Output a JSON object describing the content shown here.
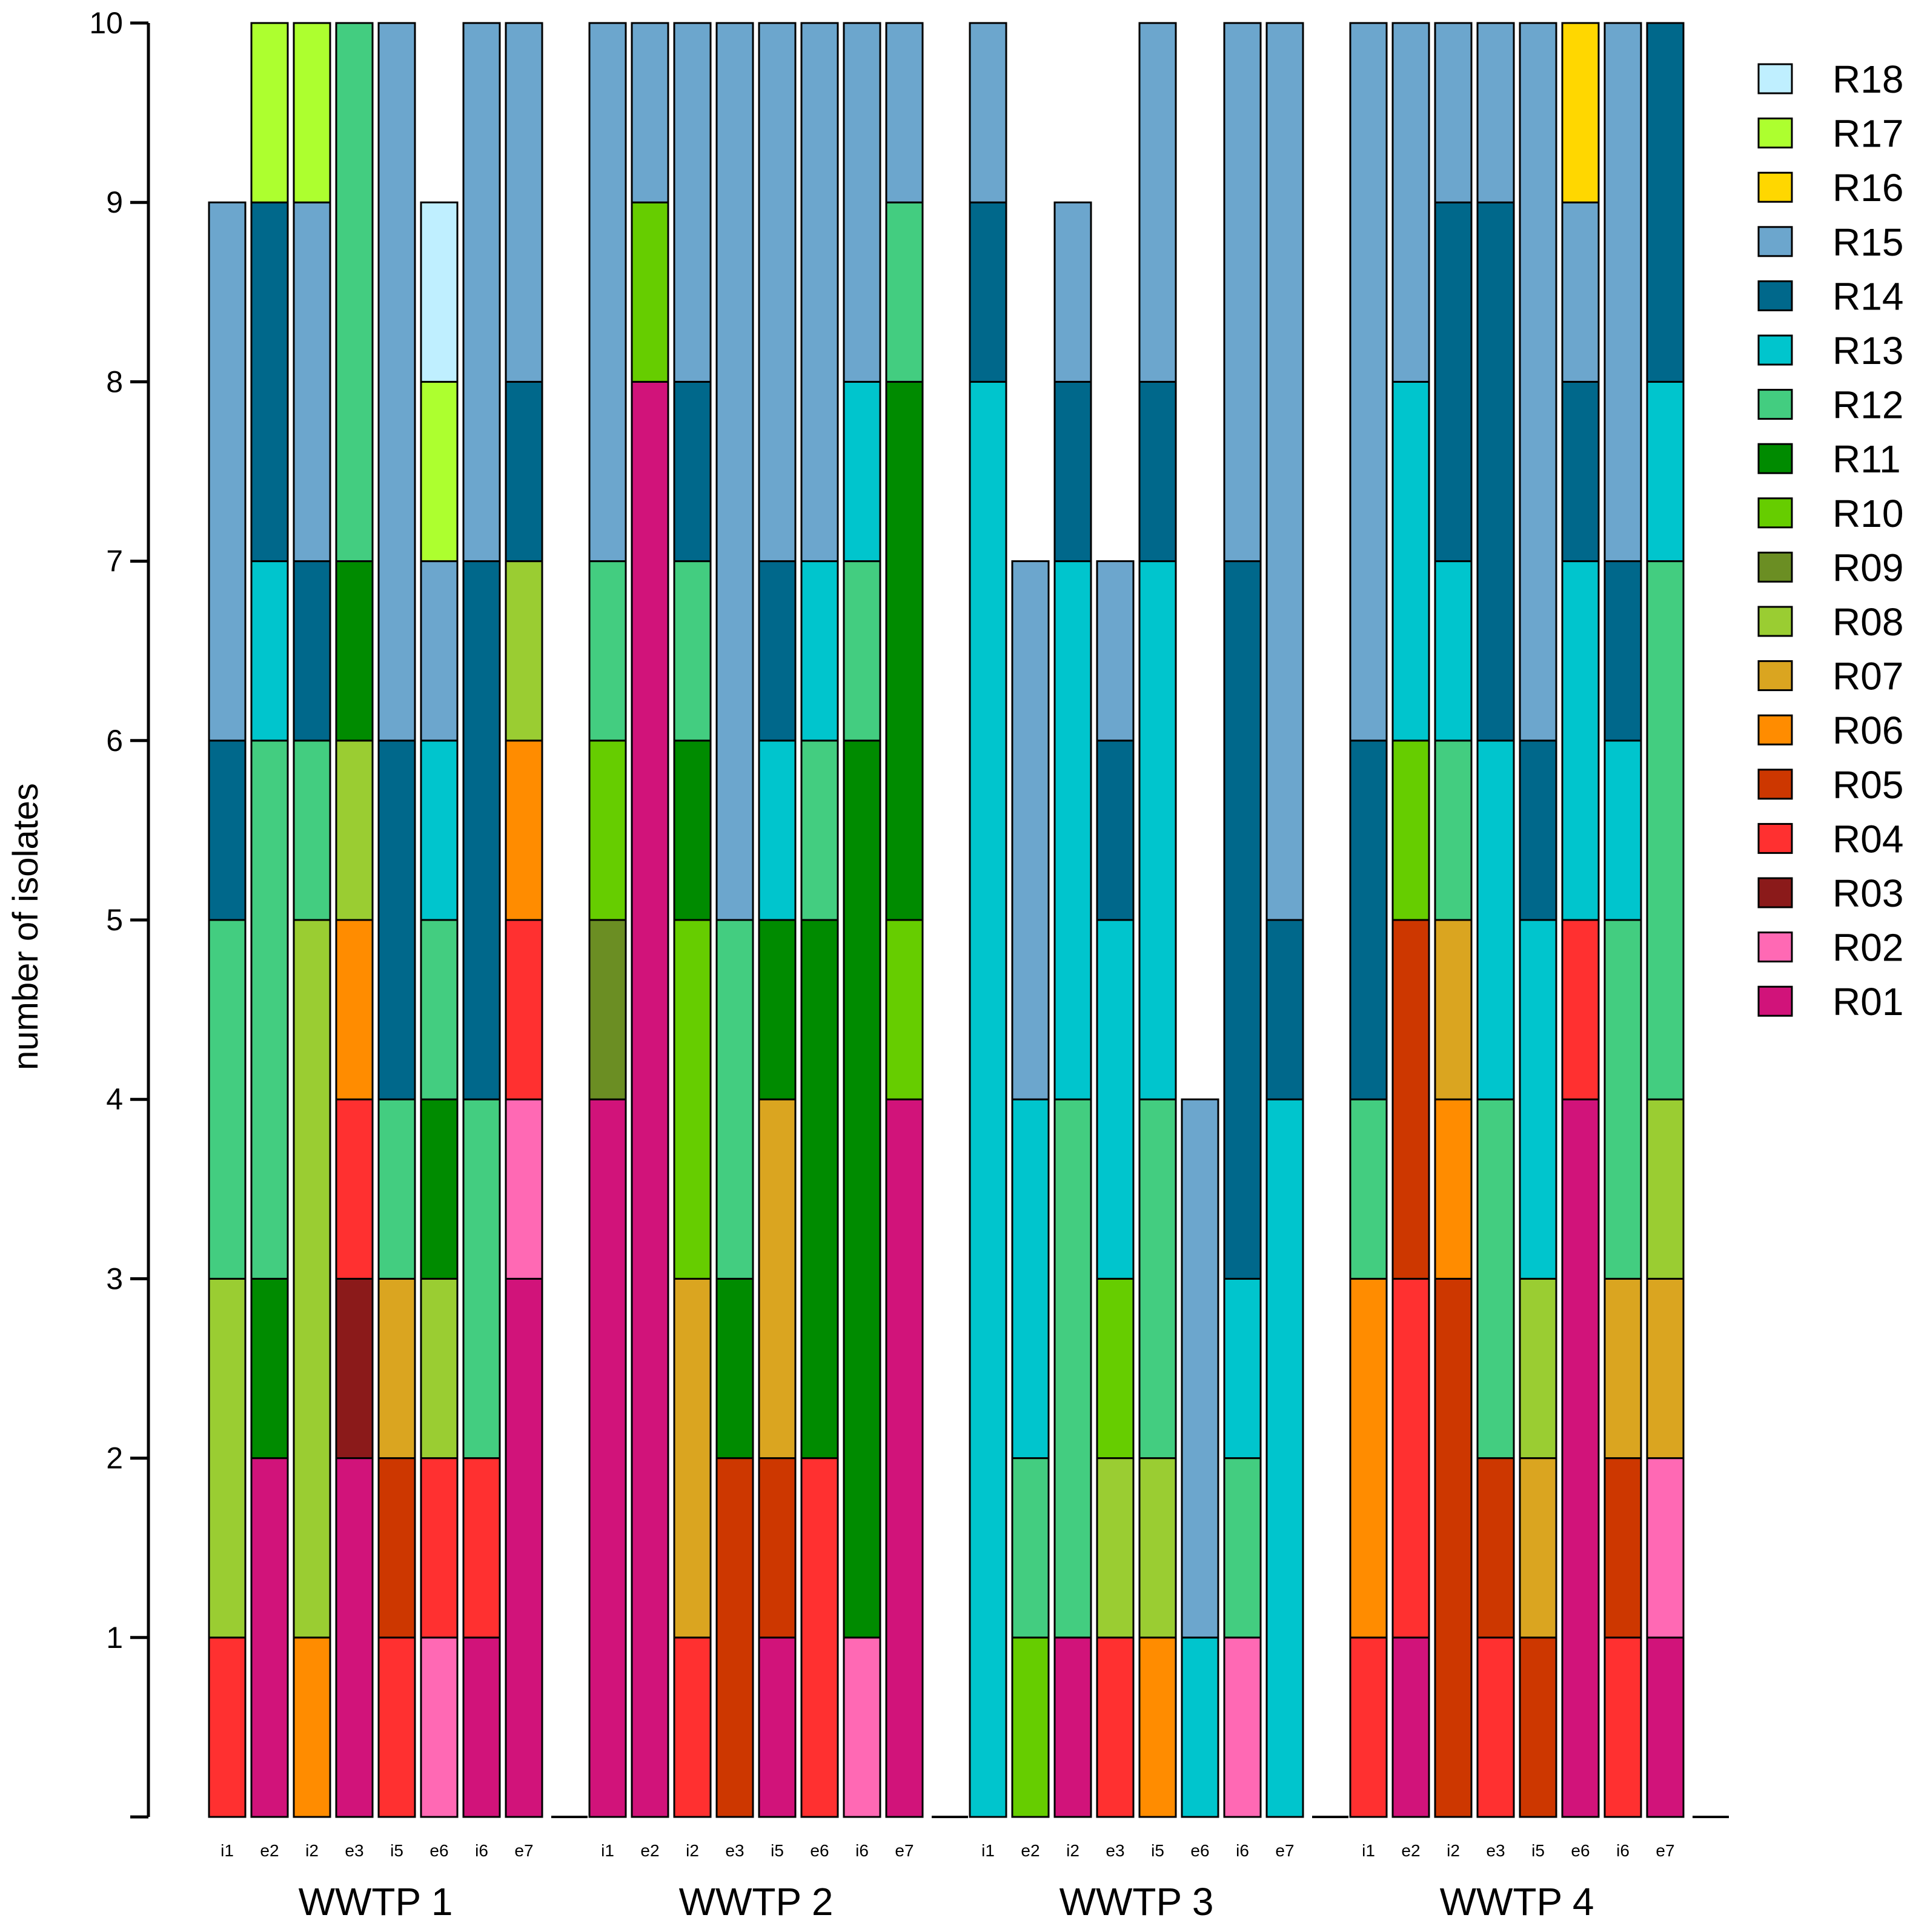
{
  "colors": {
    "R01": "#D1137A",
    "R02": "#FF69B4",
    "R03": "#8B1A1A",
    "R04": "#FF3030",
    "R05": "#CD3700",
    "R06": "#FF8C00",
    "R07": "#DAA520",
    "R08": "#9ACD32",
    "R09": "#6B8E23",
    "R10": "#66CD00",
    "R11": "#008B00",
    "R12": "#43CD80",
    "R13": "#00C5CD",
    "R14": "#00688B",
    "R15": "#6CA6CD",
    "R16": "#FFD700",
    "R17": "#ADFF2F",
    "R18": "#BFEFFF"
  },
  "chart_data": {
    "type": "bar",
    "stacked": true,
    "title": "",
    "xlabel": "",
    "ylabel": "number of isolates",
    "ylim": [
      0,
      10
    ],
    "yticks": [
      "1",
      "2",
      "3",
      "4",
      "5",
      "6",
      "7",
      "8",
      "9",
      "10"
    ],
    "legend_position": "right",
    "legend": [
      "R18",
      "R17",
      "R16",
      "R15",
      "R14",
      "R13",
      "R12",
      "R11",
      "R10",
      "R09",
      "R08",
      "R07",
      "R06",
      "R05",
      "R04",
      "R03",
      "R02",
      "R01"
    ],
    "groups": [
      {
        "name": "WWTP 1",
        "samples": [
          {
            "label": "i1",
            "stack": [
              [
                "R04",
                1
              ],
              [
                "R08",
                2
              ],
              [
                "R12",
                2
              ],
              [
                "R14",
                1
              ],
              [
                "R15",
                3
              ]
            ]
          },
          {
            "label": "e2",
            "stack": [
              [
                "R01",
                2
              ],
              [
                "R11",
                1
              ],
              [
                "R12",
                3
              ],
              [
                "R13",
                1
              ],
              [
                "R14",
                2
              ],
              [
                "R17",
                1
              ]
            ]
          },
          {
            "label": "i2",
            "stack": [
              [
                "R06",
                1
              ],
              [
                "R08",
                4
              ],
              [
                "R12",
                1
              ],
              [
                "R14",
                1
              ],
              [
                "R15",
                2
              ],
              [
                "R17",
                1
              ]
            ]
          },
          {
            "label": "e3",
            "stack": [
              [
                "R01",
                2
              ],
              [
                "R03",
                1
              ],
              [
                "R04",
                1
              ],
              [
                "R06",
                1
              ],
              [
                "R08",
                1
              ],
              [
                "R11",
                1
              ],
              [
                "R12",
                3
              ]
            ]
          },
          {
            "label": "i5",
            "stack": [
              [
                "R04",
                1
              ],
              [
                "R05",
                1
              ],
              [
                "R07",
                1
              ],
              [
                "R12",
                1
              ],
              [
                "R14",
                2
              ],
              [
                "R15",
                4
              ]
            ]
          },
          {
            "label": "e6",
            "stack": [
              [
                "R02",
                1
              ],
              [
                "R04",
                1
              ],
              [
                "R08",
                1
              ],
              [
                "R11",
                1
              ],
              [
                "R12",
                1
              ],
              [
                "R13",
                1
              ],
              [
                "R15",
                1
              ],
              [
                "R17",
                1
              ],
              [
                "R18",
                1
              ]
            ]
          },
          {
            "label": "i6",
            "stack": [
              [
                "R01",
                1
              ],
              [
                "R04",
                1
              ],
              [
                "R12",
                2
              ],
              [
                "R14",
                3
              ],
              [
                "R15",
                3
              ]
            ]
          },
          {
            "label": "e7",
            "stack": [
              [
                "R01",
                3
              ],
              [
                "R02",
                1
              ],
              [
                "R04",
                1
              ],
              [
                "R06",
                1
              ],
              [
                "R08",
                1
              ],
              [
                "R14",
                1
              ],
              [
                "R15",
                2
              ]
            ]
          }
        ]
      },
      {
        "name": "WWTP 2",
        "samples": [
          {
            "label": "i1",
            "stack": [
              [
                "R01",
                4
              ],
              [
                "R09",
                1
              ],
              [
                "R10",
                1
              ],
              [
                "R12",
                1
              ],
              [
                "R15",
                3
              ]
            ]
          },
          {
            "label": "e2",
            "stack": [
              [
                "R01",
                8
              ],
              [
                "R10",
                1
              ],
              [
                "R15",
                1
              ]
            ]
          },
          {
            "label": "i2",
            "stack": [
              [
                "R04",
                1
              ],
              [
                "R07",
                2
              ],
              [
                "R10",
                2
              ],
              [
                "R11",
                1
              ],
              [
                "R12",
                1
              ],
              [
                "R14",
                1
              ],
              [
                "R15",
                2
              ]
            ]
          },
          {
            "label": "e3",
            "stack": [
              [
                "R05",
                2
              ],
              [
                "R11",
                1
              ],
              [
                "R12",
                2
              ],
              [
                "R15",
                5
              ]
            ]
          },
          {
            "label": "i5",
            "stack": [
              [
                "R01",
                1
              ],
              [
                "R05",
                1
              ],
              [
                "R07",
                2
              ],
              [
                "R11",
                1
              ],
              [
                "R13",
                1
              ],
              [
                "R14",
                1
              ],
              [
                "R15",
                3
              ]
            ]
          },
          {
            "label": "e6",
            "stack": [
              [
                "R04",
                2
              ],
              [
                "R11",
                3
              ],
              [
                "R12",
                1
              ],
              [
                "R13",
                1
              ],
              [
                "R15",
                3
              ]
            ]
          },
          {
            "label": "i6",
            "stack": [
              [
                "R02",
                1
              ],
              [
                "R11",
                5
              ],
              [
                "R12",
                1
              ],
              [
                "R13",
                1
              ],
              [
                "R15",
                2
              ]
            ]
          },
          {
            "label": "e7",
            "stack": [
              [
                "R01",
                4
              ],
              [
                "R10",
                1
              ],
              [
                "R11",
                3
              ],
              [
                "R12",
                1
              ],
              [
                "R15",
                1
              ]
            ]
          }
        ]
      },
      {
        "name": "WWTP 3",
        "samples": [
          {
            "label": "i1",
            "stack": [
              [
                "R13",
                8
              ],
              [
                "R14",
                1
              ],
              [
                "R15",
                1
              ]
            ]
          },
          {
            "label": "e2",
            "stack": [
              [
                "R10",
                1
              ],
              [
                "R12",
                1
              ],
              [
                "R13",
                2
              ],
              [
                "R15",
                3
              ]
            ]
          },
          {
            "label": "i2",
            "stack": [
              [
                "R01",
                1
              ],
              [
                "R12",
                3
              ],
              [
                "R13",
                3
              ],
              [
                "R14",
                1
              ],
              [
                "R15",
                1
              ]
            ]
          },
          {
            "label": "e3",
            "stack": [
              [
                "R04",
                1
              ],
              [
                "R08",
                1
              ],
              [
                "R10",
                1
              ],
              [
                "R13",
                2
              ],
              [
                "R14",
                1
              ],
              [
                "R15",
                1
              ]
            ]
          },
          {
            "label": "i5",
            "stack": [
              [
                "R06",
                1
              ],
              [
                "R08",
                1
              ],
              [
                "R12",
                2
              ],
              [
                "R13",
                3
              ],
              [
                "R14",
                1
              ],
              [
                "R15",
                2
              ]
            ]
          },
          {
            "label": "e6",
            "stack": [
              [
                "R13",
                1
              ],
              [
                "R15",
                3
              ]
            ]
          },
          {
            "label": "i6",
            "stack": [
              [
                "R02",
                1
              ],
              [
                "R12",
                1
              ],
              [
                "R13",
                1
              ],
              [
                "R14",
                4
              ],
              [
                "R15",
                3
              ]
            ]
          },
          {
            "label": "e7",
            "stack": [
              [
                "R13",
                4
              ],
              [
                "R14",
                1
              ],
              [
                "R15",
                5
              ]
            ]
          }
        ]
      },
      {
        "name": "WWTP 4",
        "samples": [
          {
            "label": "i1",
            "stack": [
              [
                "R04",
                1
              ],
              [
                "R06",
                2
              ],
              [
                "R12",
                1
              ],
              [
                "R14",
                2
              ],
              [
                "R15",
                4
              ]
            ]
          },
          {
            "label": "e2",
            "stack": [
              [
                "R01",
                1
              ],
              [
                "R04",
                2
              ],
              [
                "R05",
                2
              ],
              [
                "R10",
                1
              ],
              [
                "R13",
                2
              ],
              [
                "R15",
                2
              ]
            ]
          },
          {
            "label": "i2",
            "stack": [
              [
                "R05",
                3
              ],
              [
                "R06",
                1
              ],
              [
                "R07",
                1
              ],
              [
                "R12",
                1
              ],
              [
                "R13",
                1
              ],
              [
                "R14",
                2
              ],
              [
                "R15",
                1
              ]
            ]
          },
          {
            "label": "e3",
            "stack": [
              [
                "R04",
                1
              ],
              [
                "R05",
                1
              ],
              [
                "R12",
                2
              ],
              [
                "R13",
                2
              ],
              [
                "R14",
                3
              ],
              [
                "R15",
                1
              ]
            ]
          },
          {
            "label": "i5",
            "stack": [
              [
                "R05",
                1
              ],
              [
                "R07",
                1
              ],
              [
                "R08",
                1
              ],
              [
                "R13",
                2
              ],
              [
                "R14",
                1
              ],
              [
                "R15",
                4
              ]
            ]
          },
          {
            "label": "e6",
            "stack": [
              [
                "R01",
                4
              ],
              [
                "R04",
                1
              ],
              [
                "R13",
                2
              ],
              [
                "R14",
                1
              ],
              [
                "R15",
                1
              ],
              [
                "R16",
                1
              ]
            ]
          },
          {
            "label": "i6",
            "stack": [
              [
                "R04",
                1
              ],
              [
                "R05",
                1
              ],
              [
                "R07",
                1
              ],
              [
                "R12",
                2
              ],
              [
                "R13",
                1
              ],
              [
                "R14",
                1
              ],
              [
                "R15",
                3
              ]
            ]
          },
          {
            "label": "e7",
            "stack": [
              [
                "R01",
                1
              ],
              [
                "R02",
                1
              ],
              [
                "R07",
                1
              ],
              [
                "R08",
                1
              ],
              [
                "R12",
                3
              ],
              [
                "R13",
                1
              ],
              [
                "R14",
                2
              ]
            ]
          }
        ]
      }
    ]
  }
}
